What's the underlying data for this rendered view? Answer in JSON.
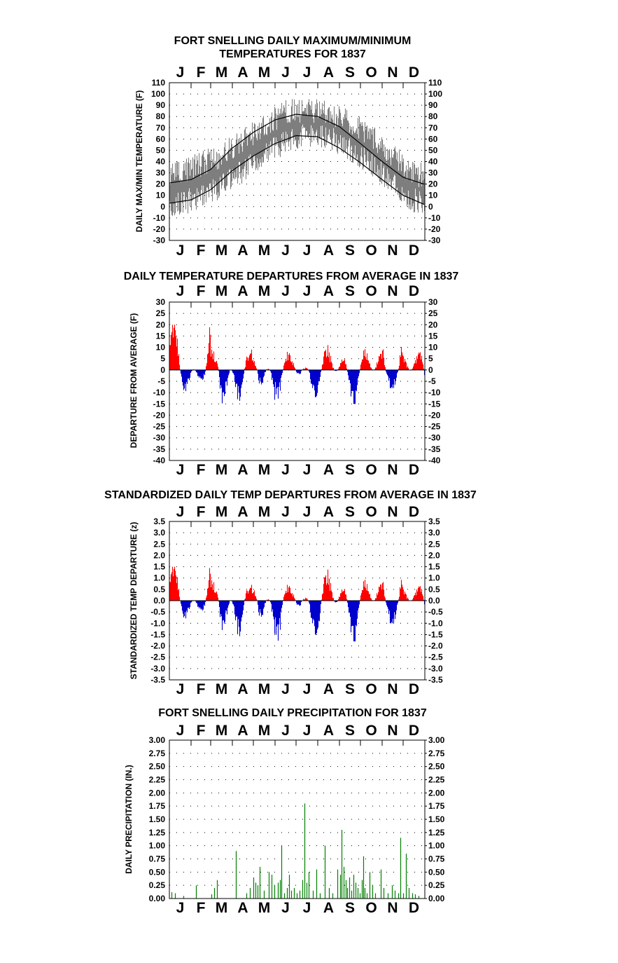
{
  "months": [
    "J",
    "F",
    "M",
    "A",
    "M",
    "J",
    "J",
    "A",
    "S",
    "O",
    "N",
    "D"
  ],
  "colors": {
    "above": "#ff0000",
    "below": "#0000cc",
    "range": "#7f7f7f",
    "precip": "#008000",
    "normal": "#000000"
  },
  "chart_data": [
    {
      "id": "maxmin",
      "type": "area",
      "title": [
        "FORT SNELLING DAILY MAXIMUM/MINIMUM",
        "TEMPERATURES FOR 1837"
      ],
      "ylabel": "DAILY MAX/MIN TEMPERATURE (F)",
      "ylim": [
        -30,
        110
      ],
      "yticks": [
        110,
        100,
        90,
        80,
        70,
        60,
        50,
        40,
        30,
        20,
        10,
        0,
        -10,
        -20,
        -30
      ],
      "grid": true,
      "x_months": [
        "J",
        "F",
        "M",
        "A",
        "M",
        "J",
        "J",
        "A",
        "S",
        "O",
        "N",
        "D"
      ],
      "series": [
        {
          "kind": "daily_range_max_min",
          "color": "#7f7f7f",
          "month_max": [
            30,
            38,
            45,
            60,
            72,
            84,
            86,
            84,
            75,
            62,
            45,
            28
          ],
          "month_min": [
            2,
            10,
            18,
            32,
            45,
            58,
            64,
            62,
            50,
            38,
            20,
            5
          ]
        },
        {
          "kind": "normal_max_line",
          "color": "#000000",
          "points_doy": [
            [
              0,
              21
            ],
            [
              31,
              24
            ],
            [
              59,
              33
            ],
            [
              90,
              52
            ],
            [
              120,
              66
            ],
            [
              151,
              77
            ],
            [
              181,
              82
            ],
            [
              212,
              80
            ],
            [
              243,
              71
            ],
            [
              273,
              56
            ],
            [
              304,
              40
            ],
            [
              334,
              26
            ],
            [
              364,
              20
            ]
          ]
        },
        {
          "kind": "normal_min_line",
          "color": "#000000",
          "points_doy": [
            [
              0,
              3
            ],
            [
              31,
              6
            ],
            [
              59,
              15
            ],
            [
              90,
              32
            ],
            [
              120,
              45
            ],
            [
              151,
              56
            ],
            [
              181,
              63
            ],
            [
              212,
              62
            ],
            [
              243,
              52
            ],
            [
              273,
              39
            ],
            [
              304,
              24
            ],
            [
              334,
              10
            ],
            [
              364,
              2
            ]
          ]
        }
      ]
    },
    {
      "id": "departure",
      "type": "bar",
      "title": [
        "DAILY TEMPERATURE DEPARTURES FROM AVERAGE IN 1837"
      ],
      "ylabel": "DEPARTURE FROM AVERAGE (F)",
      "ylim": [
        -40,
        30
      ],
      "yticks": [
        30,
        25,
        20,
        15,
        10,
        5,
        0,
        -5,
        -10,
        -15,
        -20,
        -25,
        -30,
        -35,
        -40
      ],
      "grid": true,
      "x_months": [
        "J",
        "F",
        "M",
        "A",
        "M",
        "J",
        "J",
        "A",
        "S",
        "O",
        "N",
        "D"
      ],
      "series": [
        {
          "name_hidden": "daily departure",
          "unit": "F",
          "month_extremes": [
            [
              20,
              -12
            ],
            [
              21,
              -10
            ],
            [
              9,
              -25
            ],
            [
              9,
              -20
            ],
            [
              7,
              -18
            ],
            [
              8,
              -15
            ],
            [
              5,
              -12
            ],
            [
              12,
              -10
            ],
            [
              15,
              -15
            ],
            [
              12,
              -14
            ],
            [
              21,
              -8
            ],
            [
              11,
              -25
            ]
          ]
        }
      ]
    },
    {
      "id": "standardized",
      "type": "bar",
      "title": [
        "STANDARDIZED DAILY TEMP DEPARTURES FROM AVERAGE IN 1837"
      ],
      "ylabel": "STANDARDIZED TEMP DEPARTURE (z)",
      "ylim": [
        -3.5,
        3.5
      ],
      "yticks": [
        "3.5",
        "3.0",
        "2.5",
        "2.0",
        "1.5",
        "1.0",
        "0.5",
        "0.0",
        "-0.5",
        "-1.0",
        "-1.5",
        "-2.0",
        "-2.5",
        "-3.0",
        "-3.5"
      ],
      "grid": true,
      "x_months": [
        "J",
        "F",
        "M",
        "A",
        "M",
        "J",
        "J",
        "A",
        "S",
        "O",
        "N",
        "D"
      ],
      "series": [
        {
          "name_hidden": "standardized departure",
          "unit": "z",
          "month_extremes": [
            [
              1.5,
              -1.0
            ],
            [
              1.6,
              -1.0
            ],
            [
              0.9,
              -2.2
            ],
            [
              0.7,
              -2.3
            ],
            [
              0.8,
              -2.0
            ],
            [
              0.7,
              -2.1
            ],
            [
              0.6,
              -1.5
            ],
            [
              1.5,
              -1.8
            ],
            [
              1.6,
              -1.8
            ],
            [
              1.2,
              -1.7
            ],
            [
              1.9,
              -1.0
            ],
            [
              0.9,
              -1.8
            ]
          ]
        }
      ]
    },
    {
      "id": "precip",
      "type": "bar",
      "title": [
        "FORT SNELLING DAILY PRECIPITATION FOR 1837"
      ],
      "ylabel": "DAILY PRECIPITATION (IN.)",
      "ylim": [
        0,
        3
      ],
      "yticks": [
        "3.00",
        "2.75",
        "2.50",
        "2.25",
        "2.00",
        "1.75",
        "1.50",
        "1.25",
        "1.00",
        "0.75",
        "0.50",
        "0.25",
        "0.00"
      ],
      "grid": true,
      "x_months": [
        "J",
        "F",
        "M",
        "A",
        "M",
        "J",
        "J",
        "A",
        "S",
        "O",
        "N",
        "D"
      ],
      "series": [
        {
          "name_hidden": "daily precipitation",
          "unit": "in",
          "events_doy": [
            [
              3,
              0.12
            ],
            [
              8,
              0.1
            ],
            [
              20,
              0.05
            ],
            [
              38,
              0.25
            ],
            [
              60,
              0.08
            ],
            [
              64,
              0.2
            ],
            [
              68,
              0.35
            ],
            [
              95,
              0.9
            ],
            [
              110,
              0.1
            ],
            [
              115,
              0.2
            ],
            [
              120,
              0.4
            ],
            [
              123,
              0.3
            ],
            [
              126,
              0.25
            ],
            [
              129,
              0.6
            ],
            [
              135,
              0.15
            ],
            [
              142,
              0.5
            ],
            [
              146,
              0.45
            ],
            [
              150,
              0.25
            ],
            [
              155,
              0.3
            ],
            [
              158,
              0.35
            ],
            [
              160,
              1.0
            ],
            [
              164,
              0.1
            ],
            [
              168,
              0.2
            ],
            [
              171,
              0.45
            ],
            [
              174,
              0.15
            ],
            [
              178,
              0.2
            ],
            [
              182,
              0.1
            ],
            [
              186,
              0.15
            ],
            [
              190,
              0.35
            ],
            [
              193,
              1.8
            ],
            [
              196,
              0.3
            ],
            [
              199,
              0.5
            ],
            [
              205,
              0.15
            ],
            [
              210,
              0.55
            ],
            [
              215,
              0.1
            ],
            [
              222,
              1.0
            ],
            [
              228,
              0.2
            ],
            [
              233,
              0.1
            ],
            [
              240,
              0.55
            ],
            [
              244,
              0.45
            ],
            [
              246,
              1.3
            ],
            [
              249,
              0.6
            ],
            [
              252,
              0.35
            ],
            [
              254,
              0.2
            ],
            [
              257,
              0.4
            ],
            [
              260,
              0.15
            ],
            [
              263,
              0.45
            ],
            [
              266,
              0.3
            ],
            [
              269,
              0.2
            ],
            [
              272,
              0.1
            ],
            [
              275,
              0.35
            ],
            [
              277,
              0.8
            ],
            [
              279,
              0.2
            ],
            [
              282,
              0.1
            ],
            [
              286,
              0.5
            ],
            [
              290,
              0.25
            ],
            [
              294,
              0.1
            ],
            [
              302,
              0.55
            ],
            [
              306,
              0.2
            ],
            [
              312,
              0.1
            ],
            [
              318,
              0.25
            ],
            [
              322,
              0.15
            ],
            [
              327,
              0.1
            ],
            [
              330,
              1.15
            ],
            [
              334,
              0.1
            ],
            [
              338,
              0.85
            ],
            [
              342,
              0.2
            ],
            [
              347,
              0.1
            ],
            [
              351,
              0.08
            ],
            [
              356,
              0.05
            ]
          ]
        }
      ]
    }
  ]
}
